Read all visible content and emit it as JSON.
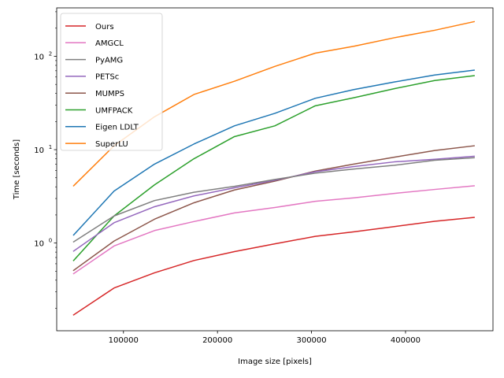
{
  "chart_data": {
    "type": "line",
    "title": "",
    "xlabel": "Image size [pixels]",
    "ylabel": "Time [seconds]",
    "xscale": "linear",
    "yscale": "log",
    "xlim": [
      29000,
      493000
    ],
    "ylim": [
      0.115,
      330
    ],
    "xticks": [
      100000,
      200000,
      300000,
      400000
    ],
    "xtick_labels": [
      "100000",
      "200000",
      "300000",
      "400000"
    ],
    "yticks": [
      1,
      10,
      100
    ],
    "ytick_labels": [
      "10^0",
      "10^1",
      "10^2"
    ],
    "grid": false,
    "legend_position": "top-left",
    "x": [
      47000,
      90000,
      133000,
      175000,
      218000,
      261000,
      304000,
      345000,
      388000,
      431000,
      473000
    ],
    "series": [
      {
        "name": "Ours",
        "color": "#d62728",
        "values": [
          0.17,
          0.33,
          0.48,
          0.65,
          0.81,
          0.98,
          1.18,
          1.32,
          1.5,
          1.71,
          1.88
        ]
      },
      {
        "name": "AMGCL",
        "color": "#e377c2",
        "values": [
          0.47,
          0.93,
          1.36,
          1.7,
          2.1,
          2.4,
          2.8,
          3.05,
          3.4,
          3.75,
          4.1
        ]
      },
      {
        "name": "PyAMG",
        "color": "#7f7f7f",
        "values": [
          1.03,
          1.95,
          2.85,
          3.5,
          4.05,
          4.8,
          5.6,
          6.2,
          6.8,
          7.7,
          8.2
        ]
      },
      {
        "name": "PETSc",
        "color": "#9467bd",
        "values": [
          0.82,
          1.65,
          2.45,
          3.2,
          3.9,
          4.7,
          5.8,
          6.6,
          7.4,
          7.9,
          8.5
        ]
      },
      {
        "name": "MUMPS",
        "color": "#8c564b",
        "values": [
          0.51,
          1.05,
          1.8,
          2.7,
          3.7,
          4.6,
          5.9,
          7.0,
          8.3,
          9.8,
          11.0
        ]
      },
      {
        "name": "UMFPACK",
        "color": "#2ca02c",
        "values": [
          0.65,
          1.95,
          4.2,
          8.0,
          13.8,
          18.0,
          29.5,
          36.0,
          45.0,
          55.0,
          62.0
        ]
      },
      {
        "name": "Eigen LDLT",
        "color": "#1f77b4",
        "values": [
          1.22,
          3.6,
          7.0,
          11.5,
          18.0,
          24.5,
          35.5,
          44.0,
          53.0,
          63.0,
          71.0
        ]
      },
      {
        "name": "SuperLU",
        "color": "#ff7f0e",
        "values": [
          4.1,
          11.0,
          22.5,
          39.0,
          54.0,
          78.0,
          108.0,
          128.0,
          158.0,
          190.0,
          235.0
        ]
      }
    ]
  }
}
